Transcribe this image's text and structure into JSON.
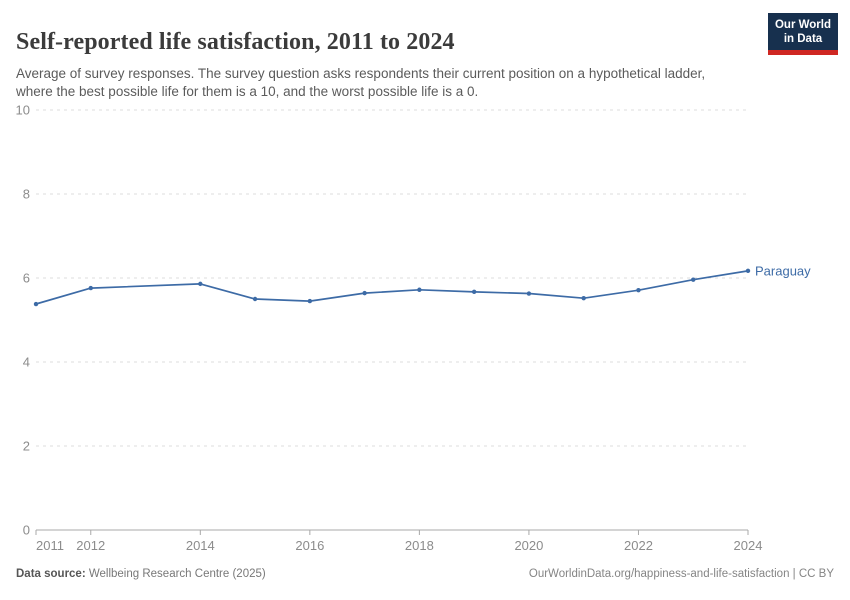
{
  "header": {
    "title": "Self-reported life satisfaction, 2011 to 2024",
    "subtitle": "Average of survey responses. The survey question asks respondents their current position on a hypothetical ladder, where the best possible life for them is a 10, and the worst possible life is a 0.",
    "logo": {
      "line1": "Our World",
      "line2": "in Data",
      "bg_color": "#17304e",
      "stripe_color": "#cf2722"
    }
  },
  "chart_data": {
    "type": "line",
    "title": "Self-reported life satisfaction, 2011 to 2024",
    "xlabel": "",
    "ylabel": "",
    "xlim": [
      2011,
      2024
    ],
    "ylim": [
      0,
      10
    ],
    "x_ticks": [
      2011,
      2012,
      2014,
      2016,
      2018,
      2020,
      2022,
      2024
    ],
    "y_ticks": [
      0,
      2,
      4,
      6,
      8,
      10
    ],
    "grid": "horizontal-dashed",
    "legend": "end-of-line-label",
    "series": [
      {
        "name": "Paraguay",
        "color": "#3d6ba6",
        "points": [
          [
            2011,
            5.38
          ],
          [
            2012,
            5.76
          ],
          [
            2014,
            5.86
          ],
          [
            2015,
            5.5
          ],
          [
            2016,
            5.45
          ],
          [
            2017,
            5.64
          ],
          [
            2018,
            5.72
          ],
          [
            2019,
            5.67
          ],
          [
            2020,
            5.63
          ],
          [
            2021,
            5.52
          ],
          [
            2022,
            5.71
          ],
          [
            2023,
            5.96
          ],
          [
            2024,
            6.17
          ]
        ],
        "note": "no data point for 2013"
      }
    ]
  },
  "footer": {
    "datasource_label": "Data source:",
    "datasource_value": " Wellbeing Research Centre (2025)",
    "link_text": "OurWorldinData.org/happiness-and-life-satisfaction | CC BY"
  },
  "colors": {
    "line": "#3d6ba6",
    "gridline": "#dcdcdc",
    "axis": "#a8a8a8",
    "tick_label": "#8c8c8c",
    "title_text": "#3b3b3b",
    "subtitle_text": "#5b5b5b"
  }
}
